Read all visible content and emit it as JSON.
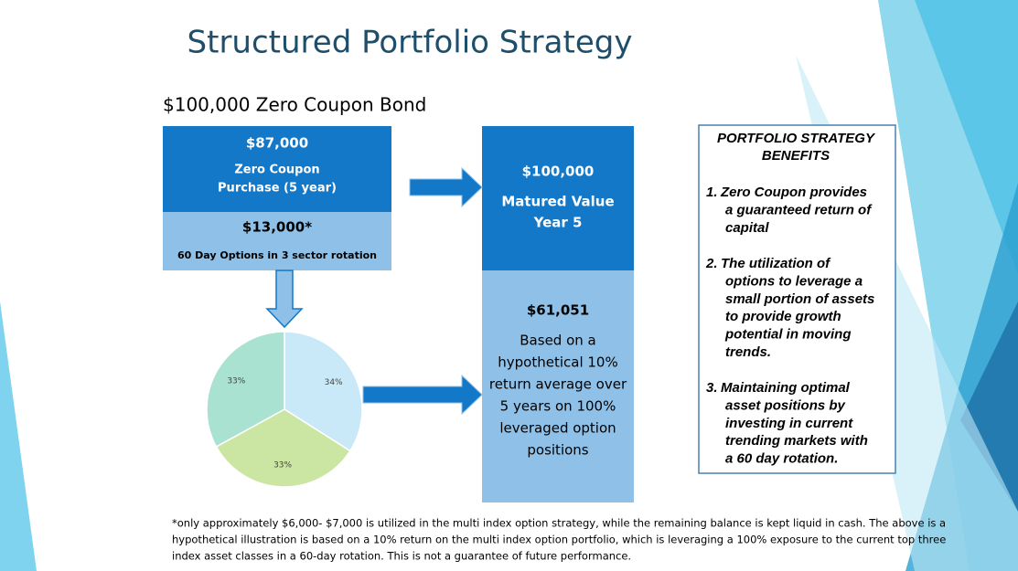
{
  "title": "Structured Portfolio Strategy",
  "subtitle": "$100,000 Zero Coupon Bond",
  "bond_box": {
    "amount": "$87,000",
    "lines": [
      "Zero Coupon",
      "Purchase (5 year)"
    ]
  },
  "options_box": {
    "amount": "$13,000*",
    "label": "60 Day Options in 3 sector rotation"
  },
  "matured_box": {
    "amount": "$100,000",
    "lines": [
      "Matured Value",
      "Year 5"
    ]
  },
  "return_box": {
    "amount": "$61,051",
    "lines": [
      "Based on a",
      "hypothetical 10%",
      "return average over",
      "5 years on 100%",
      "leveraged option",
      "positions"
    ]
  },
  "pie": {
    "type": "pie",
    "values": [
      34,
      33,
      33
    ],
    "value_labels": [
      "34%",
      "33%",
      "33%"
    ],
    "colors": [
      "#c9e9f8",
      "#cbe5a2",
      "#a9e2d1"
    ]
  },
  "benefits": {
    "heading": [
      "PORTFOLIO STRATEGY",
      "BENEFITS"
    ],
    "items": [
      {
        "number": "1.",
        "lines": [
          "Zero Coupon provides",
          "a guaranteed return of",
          "capital"
        ]
      },
      {
        "number": "2.",
        "lines": [
          "The utilization of",
          "options to leverage a",
          "small portion of assets",
          "to provide growth",
          "potential in moving",
          "trends."
        ]
      },
      {
        "number": "3.",
        "lines": [
          "Maintaining optimal",
          "asset positions by",
          "investing in current",
          "trending markets with",
          "a 60 day rotation."
        ]
      }
    ]
  },
  "footnote": [
    "*only approximately $6,000- $7,000 is utilized in the multi index option strategy, while the remaining balance is kept liquid in cash. The above is a",
    "hypothetical illustration is based on a 10% return on the multi index option portfolio, which is leveraging a 100% exposure to the current top three",
    "index asset classes in a 60-day rotation. This is not a guarantee of future performance."
  ]
}
